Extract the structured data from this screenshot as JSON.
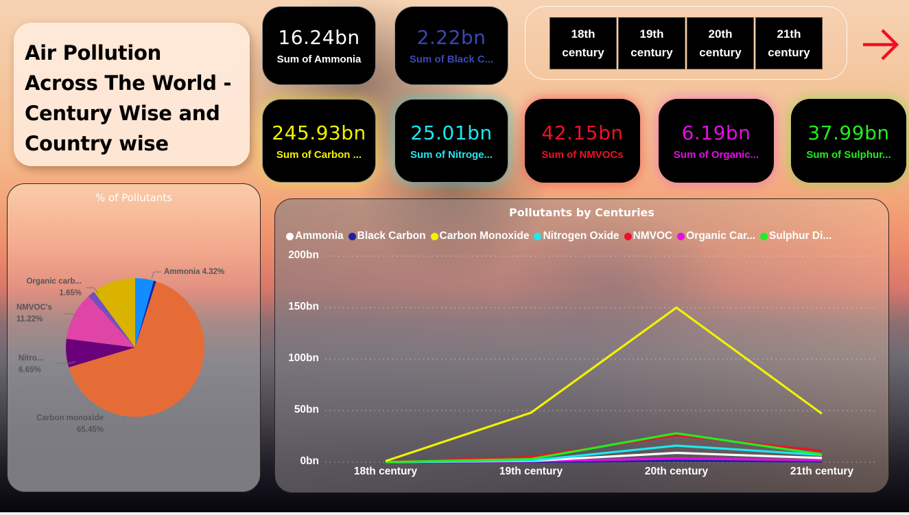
{
  "header": {
    "title": "Air Pollution Across The World - Century Wise and Country wise"
  },
  "kpis": [
    {
      "value": "16.24bn",
      "label": "Sum of Ammonia",
      "color": "#ffffff"
    },
    {
      "value": "2.22bn",
      "label": "Sum of Black C...",
      "color": "#3b48b5"
    },
    {
      "value": "245.93bn",
      "label": "Sum of Carbon ...",
      "color": "#f2f200"
    },
    {
      "value": "25.01bn",
      "label": "Sum of Nitroge...",
      "color": "#1ee8f0"
    },
    {
      "value": "42.15bn",
      "label": "Sum of NMVOCs",
      "color": "#f0102a"
    },
    {
      "value": "6.19bn",
      "label": "Sum of Organic...",
      "color": "#e30fe3"
    },
    {
      "value": "37.99bn",
      "label": "Sum of Sulphur...",
      "color": "#22ee22"
    }
  ],
  "century_slicer": {
    "options": [
      {
        "line1": "18th",
        "line2": "century"
      },
      {
        "line1": "19th",
        "line2": "century"
      },
      {
        "line1": "20th",
        "line2": "century"
      },
      {
        "line1": "21th",
        "line2": "century"
      }
    ],
    "next_icon": "arrow-right-icon",
    "next_color": "#ee1122"
  },
  "chart_data": [
    {
      "type": "pie",
      "title": "% of Pollutants",
      "slices": [
        {
          "name": "Ammonia",
          "label": "Ammonia 4.32%",
          "percent": 4.32,
          "color": "#118dff"
        },
        {
          "name": "Black carbon",
          "label": "",
          "percent": 0.59,
          "color": "#12239e"
        },
        {
          "name": "Carbon monoxide",
          "label": "Carbon monoxide 65.45%",
          "percent": 65.45,
          "color": "#e66c37"
        },
        {
          "name": "Nitrogen oxide",
          "label": "Nitro... 6.65%",
          "percent": 6.65,
          "color": "#6b007b"
        },
        {
          "name": "NMVOC's",
          "label": "NMVOC's 11.22%",
          "percent": 11.22,
          "color": "#e044a7"
        },
        {
          "name": "Organic carbon",
          "label": "Organic carb... 1.65%",
          "percent": 1.65,
          "color": "#744ec2"
        },
        {
          "name": "Sulphur dioxide",
          "label": "",
          "percent": 10.12,
          "color": "#d9b300"
        }
      ]
    },
    {
      "type": "line",
      "title": "Pollutants by Centuries",
      "x": [
        "18th century",
        "19th century",
        "20th century",
        "21th century"
      ],
      "yticks": [
        "0bn",
        "50bn",
        "100bn",
        "150bn",
        "200bn"
      ],
      "ylim": [
        0,
        200
      ],
      "ylabel": "bn",
      "grid": true,
      "legend_position": "top",
      "series": [
        {
          "name": "Ammonia",
          "legend": "Ammonia",
          "color": "#ffffff",
          "values": [
            0.1,
            1.2,
            9.0,
            4.0
          ]
        },
        {
          "name": "Black Carbon",
          "legend": "Black Carbon",
          "color": "#1a239e",
          "values": [
            0.05,
            0.3,
            1.2,
            0.7
          ]
        },
        {
          "name": "Carbon Monoxide",
          "legend": "Carbon Monoxide",
          "color": "#f2f200",
          "values": [
            1.0,
            48.0,
            150.0,
            47.0
          ]
        },
        {
          "name": "Nitrogen Oxide",
          "legend": "Nitrogen Oxide",
          "color": "#1ee8f0",
          "values": [
            0.05,
            1.5,
            16.0,
            7.0
          ]
        },
        {
          "name": "NMVOC",
          "legend": "NMVOC",
          "color": "#f0102a",
          "values": [
            0.3,
            5.0,
            26.0,
            11.0
          ]
        },
        {
          "name": "Organic Carbon",
          "legend": "Organic Car...",
          "color": "#e30fe3",
          "values": [
            0.1,
            0.8,
            3.5,
            1.8
          ]
        },
        {
          "name": "Sulphur Dioxide",
          "legend": "Sulphur Di...",
          "color": "#22ee22",
          "values": [
            0.1,
            3.0,
            28.0,
            7.5
          ]
        }
      ]
    }
  ]
}
